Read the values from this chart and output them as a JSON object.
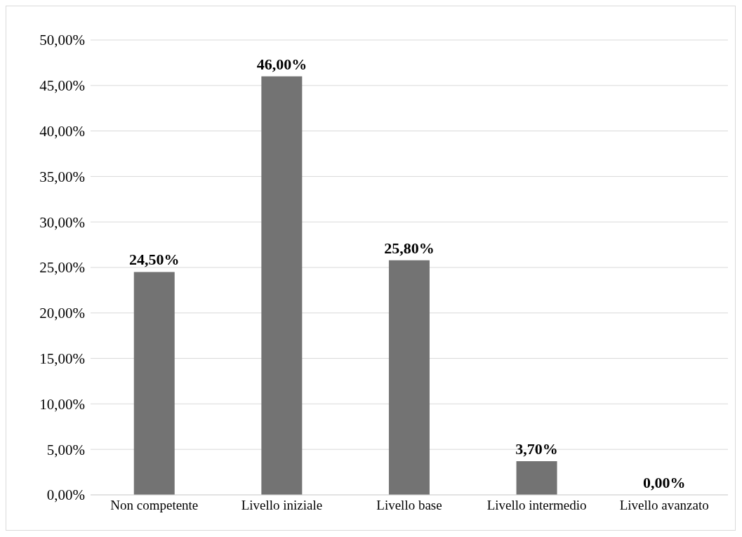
{
  "chart_data": {
    "type": "bar",
    "categories": [
      "Non competente",
      "Livello iniziale",
      "Livello base",
      "Livello intermedio",
      "Livello avanzato"
    ],
    "values": [
      24.5,
      46.0,
      25.8,
      3.7,
      0.0
    ],
    "value_labels": [
      "24,50%",
      "46,00%",
      "25,80%",
      "3,70%",
      "0,00%"
    ],
    "color": "#737373",
    "ylim": [
      0,
      50
    ],
    "yticks": [
      {
        "value": 0,
        "label": "0,00%"
      },
      {
        "value": 5,
        "label": "5,00%"
      },
      {
        "value": 10,
        "label": "10,00%"
      },
      {
        "value": 15,
        "label": "15,00%"
      },
      {
        "value": 20,
        "label": "20,00%"
      },
      {
        "value": 25,
        "label": "25,00%"
      },
      {
        "value": 30,
        "label": "30,00%"
      },
      {
        "value": 35,
        "label": "35,00%"
      },
      {
        "value": 40,
        "label": "40,00%"
      },
      {
        "value": 45,
        "label": "45,00%"
      },
      {
        "value": 50,
        "label": "50,00%"
      }
    ],
    "grid": "y"
  }
}
